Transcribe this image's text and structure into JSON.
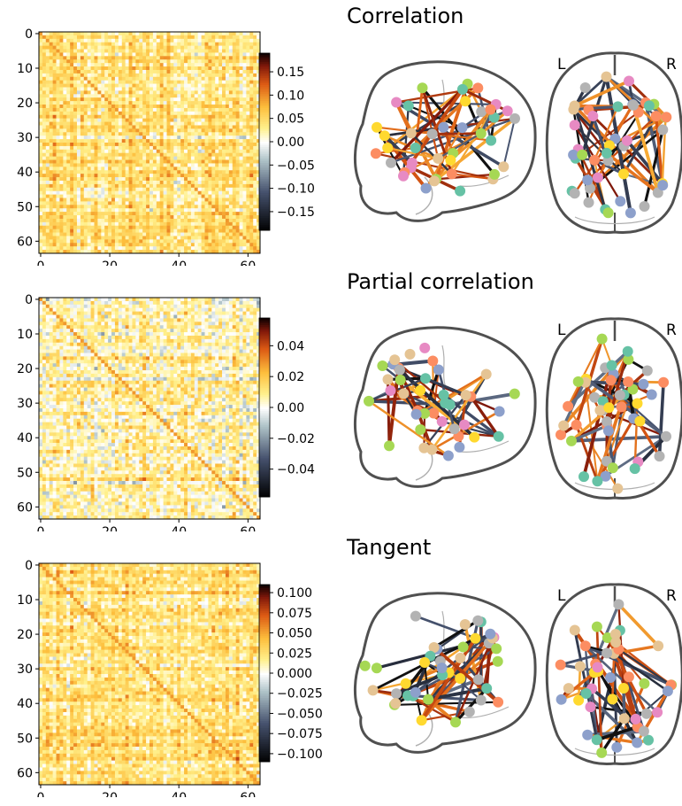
{
  "chart_data": [
    {
      "type": "heatmap",
      "title": "Correlation",
      "matrix_size": 64,
      "x_ticks": [
        0,
        20,
        40,
        60
      ],
      "y_ticks": [
        0,
        10,
        20,
        30,
        40,
        50,
        60
      ],
      "colormap": "cold_hot",
      "vmin": -0.19,
      "vmax": 0.19,
      "colorbar_ticks": [
        "0.15",
        "0.10",
        "0.05",
        "0.00",
        "−0.05",
        "−0.10",
        "−0.15"
      ],
      "colorbar_values": [
        0.15,
        0.1,
        0.05,
        0.0,
        -0.05,
        -0.1,
        -0.15
      ],
      "connectome": {
        "left_label": "L",
        "right_label": "R"
      },
      "seed": 11
    },
    {
      "type": "heatmap",
      "title": "Partial correlation",
      "matrix_size": 64,
      "x_ticks": [
        0,
        20,
        40,
        60
      ],
      "y_ticks": [
        0,
        10,
        20,
        30,
        40,
        50,
        60
      ],
      "colormap": "cold_hot",
      "vmin": -0.058,
      "vmax": 0.058,
      "colorbar_ticks": [
        "0.04",
        "0.02",
        "0.00",
        "−0.02",
        "−0.04"
      ],
      "colorbar_values": [
        0.04,
        0.02,
        0.0,
        -0.02,
        -0.04
      ],
      "connectome": {
        "left_label": "L",
        "right_label": "R"
      },
      "seed": 37
    },
    {
      "type": "heatmap",
      "title": "Tangent",
      "matrix_size": 64,
      "x_ticks": [
        0,
        20,
        40,
        60
      ],
      "y_ticks": [
        0,
        10,
        20,
        30,
        40,
        50,
        60
      ],
      "colormap": "cold_hot",
      "vmin": -0.11,
      "vmax": 0.11,
      "colorbar_ticks": [
        "0.100",
        "0.075",
        "0.050",
        "0.025",
        "0.000",
        "−0.025",
        "−0.050",
        "−0.075",
        "−0.100"
      ],
      "colorbar_values": [
        0.1,
        0.075,
        0.05,
        0.025,
        0.0,
        -0.025,
        -0.05,
        -0.075,
        -0.1
      ],
      "connectome": {
        "left_label": "L",
        "right_label": "R"
      },
      "seed": 73
    }
  ],
  "colors": {
    "node_palette": [
      "#66c2a5",
      "#fc8d62",
      "#8da0cb",
      "#e78ac3",
      "#a6d854",
      "#ffd92f",
      "#e5c494",
      "#b3b3b3"
    ],
    "brain_outline": "#505050",
    "brain_inner": "#b0b0b0"
  }
}
